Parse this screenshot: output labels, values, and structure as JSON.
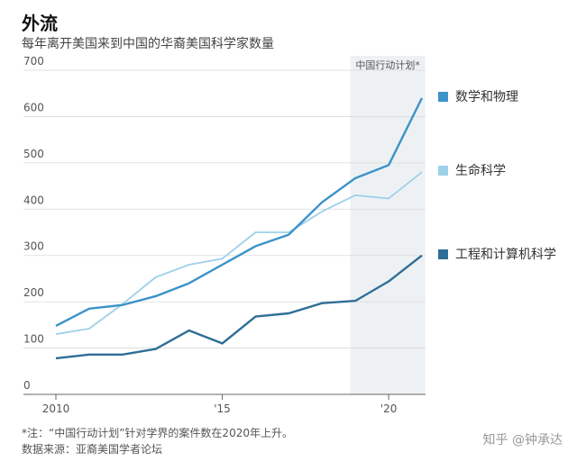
{
  "title": "外流",
  "subtitle": "每年离开美国来到中国的华裔美国科学家数量",
  "footnote1": "*注：“中国行动计划”针对学界的案件数在2020年上升。",
  "footnote2": "数据来源：亚裔美国学者论坛",
  "watermark": "知乎 @钟承达",
  "colors": {
    "math": "#3b93c9",
    "life": "#9fd0ea",
    "eng": "#2f6e96",
    "shade": "#eef1f3",
    "grid": "#d9d9d9"
  },
  "chart_data": {
    "type": "line",
    "x": [
      2010,
      2011,
      2012,
      2013,
      2014,
      2015,
      2016,
      2017,
      2018,
      2019,
      2020,
      2021
    ],
    "series": [
      {
        "name": "数学和物理",
        "values": [
          148,
          185,
          193,
          212,
          240,
          280,
          320,
          345,
          415,
          467,
          495,
          640
        ]
      },
      {
        "name": "生命科学",
        "values": [
          130,
          142,
          195,
          253,
          280,
          293,
          350,
          350,
          395,
          430,
          423,
          480
        ]
      },
      {
        "name": "工程和计算机科学",
        "values": [
          78,
          86,
          86,
          98,
          138,
          110,
          168,
          175,
          197,
          202,
          244,
          300
        ]
      }
    ],
    "ylim": [
      0,
      700
    ],
    "yticks": [
      "0",
      "100",
      "200",
      "300",
      "400",
      "500",
      "600",
      "700"
    ],
    "ytick_values": [
      0,
      100,
      200,
      300,
      400,
      500,
      600,
      700
    ],
    "xticks": [
      "2010",
      "'15",
      "'20"
    ],
    "xtick_values": [
      2010,
      2015,
      2020
    ],
    "shaded_region": {
      "x_start": 2018.85,
      "x_end": 2021.1,
      "label": "中国行动计划*"
    },
    "grid": true,
    "legend": "right"
  }
}
